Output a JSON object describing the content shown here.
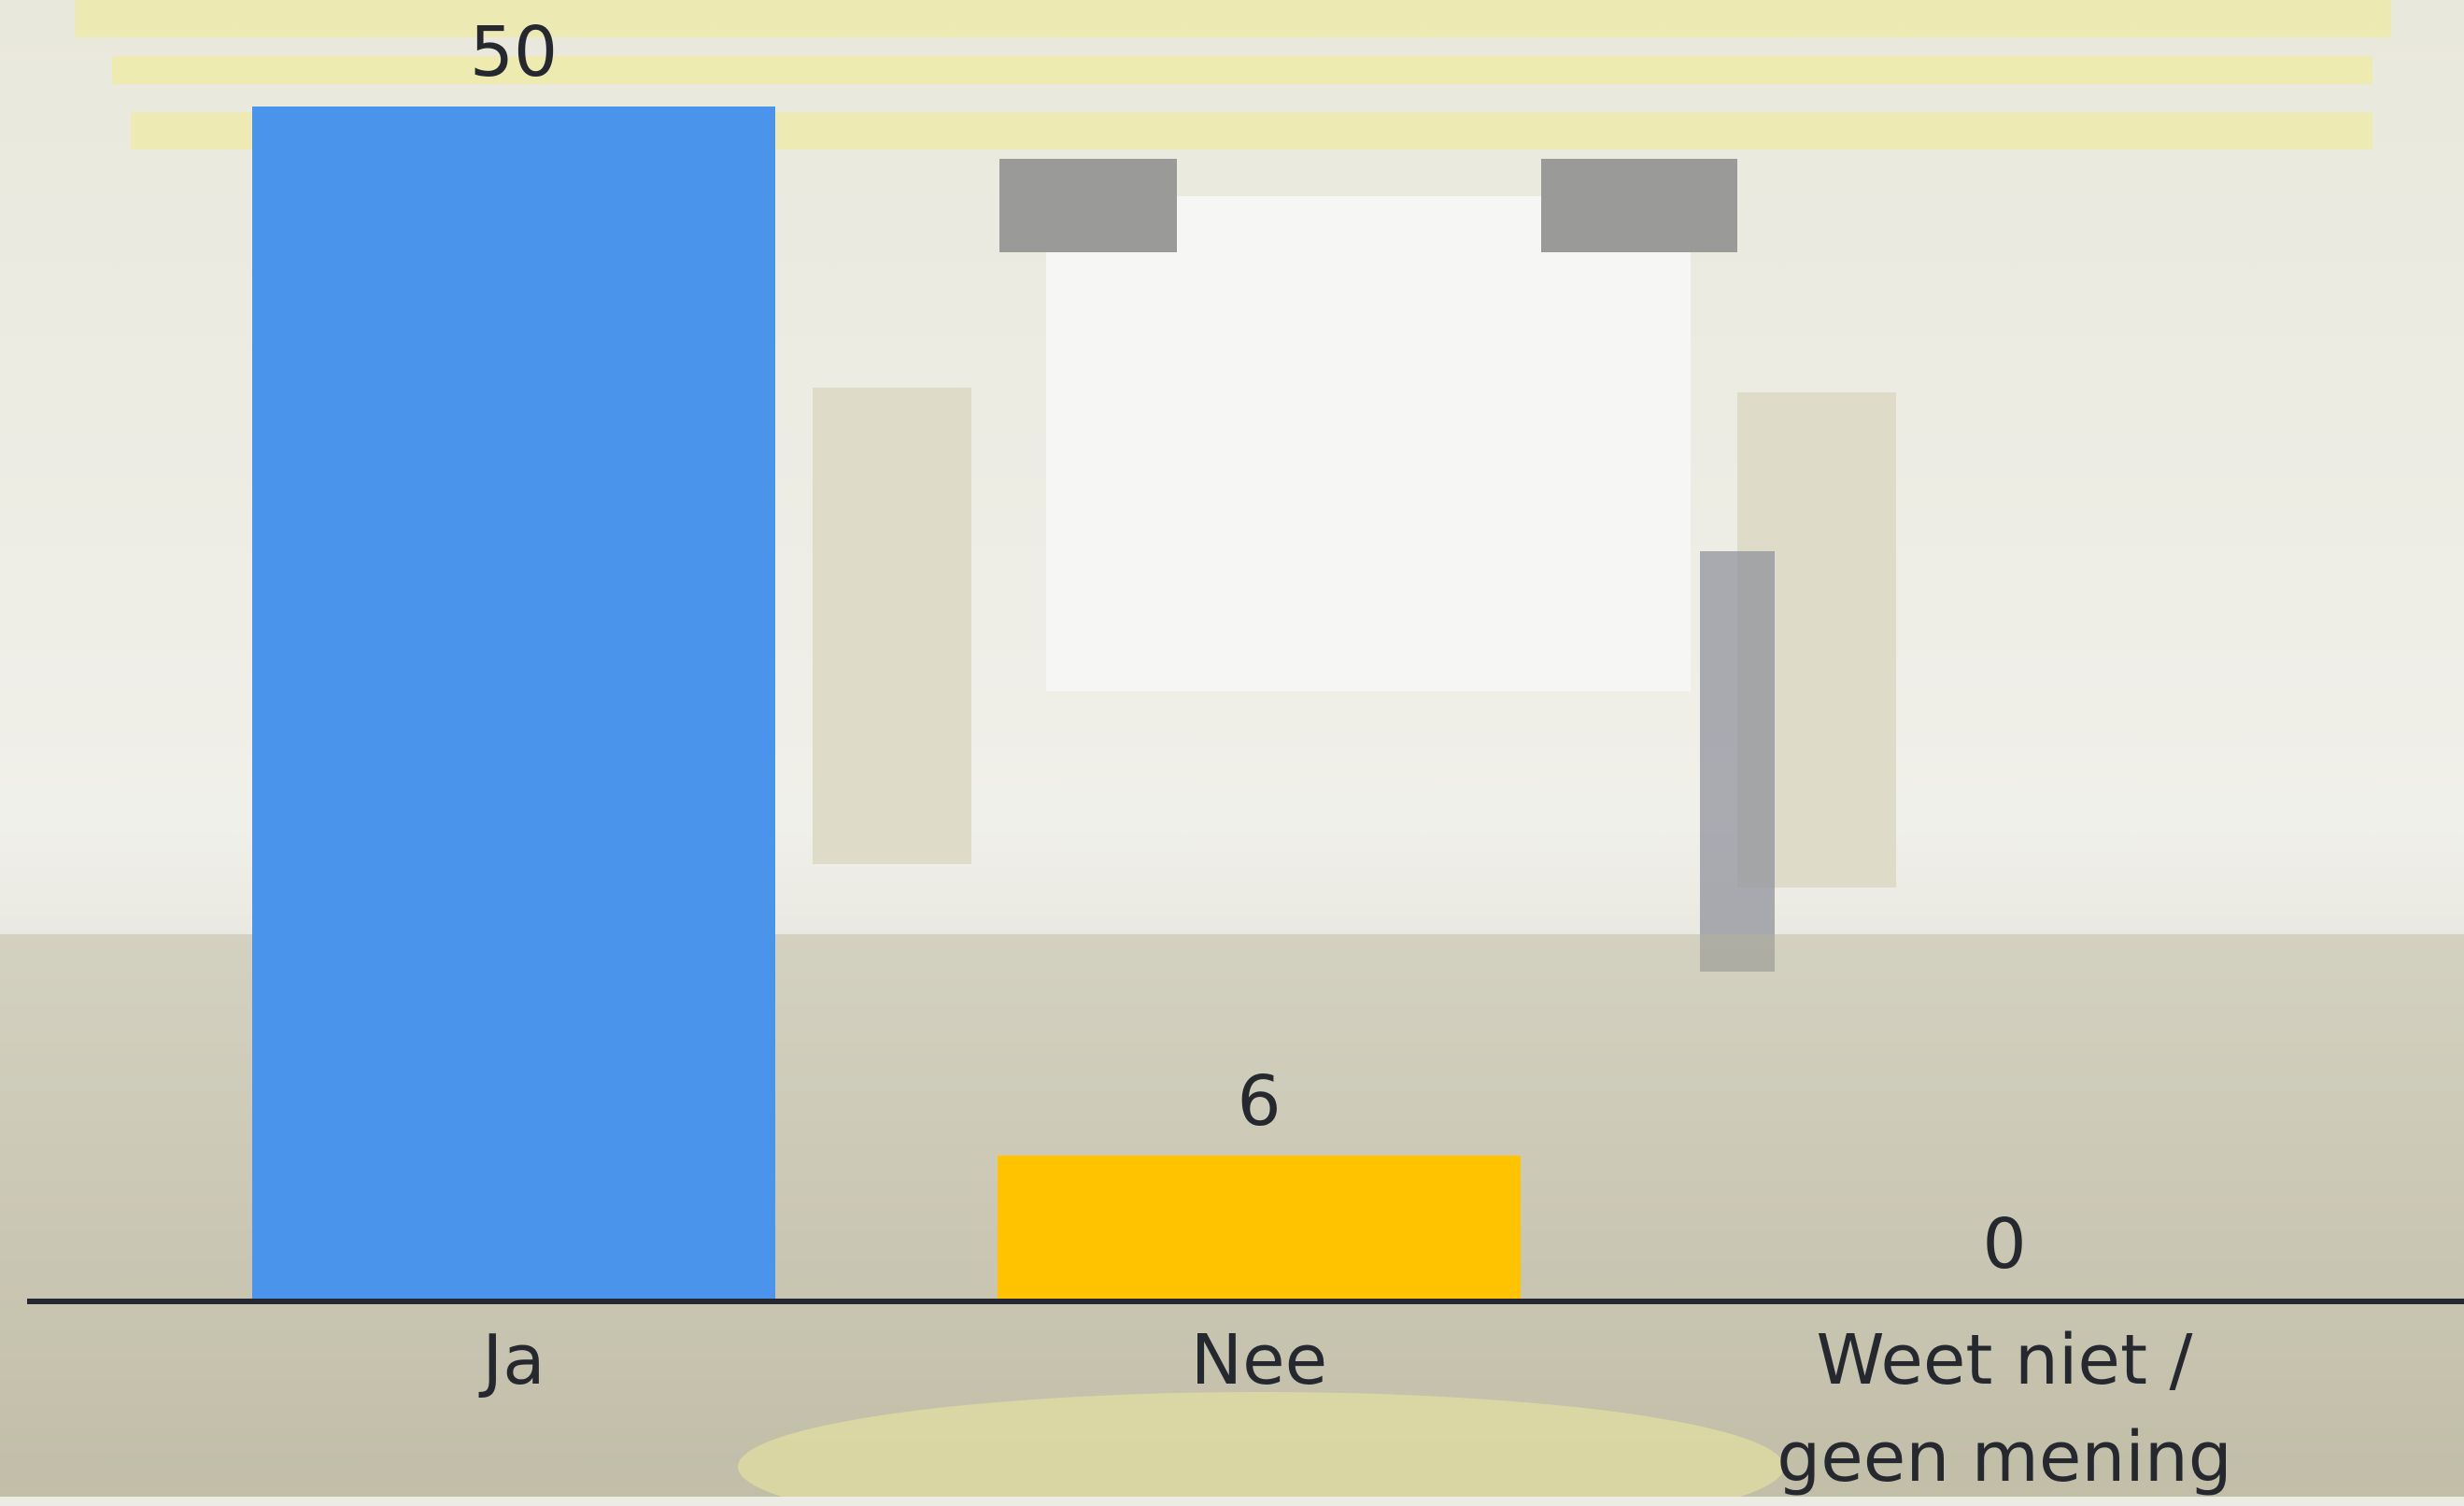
{
  "chart_data": {
    "type": "bar",
    "categories": [
      "Ja",
      "Nee",
      "Weet niet / geen mening"
    ],
    "values": [
      50,
      6,
      0
    ],
    "colors": [
      "#4b94ec",
      "#ffc300",
      "#f25c54"
    ],
    "ylim": [
      0,
      50
    ]
  }
}
